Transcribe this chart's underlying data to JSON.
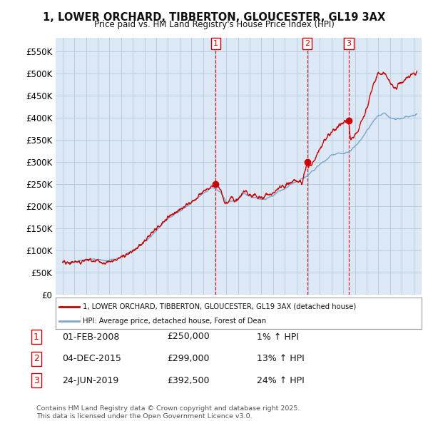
{
  "title": "1, LOWER ORCHARD, TIBBERTON, GLOUCESTER, GL19 3AX",
  "subtitle": "Price paid vs. HM Land Registry's House Price Index (HPI)",
  "ylabel_ticks": [
    "£0",
    "£50K",
    "£100K",
    "£150K",
    "£200K",
    "£250K",
    "£300K",
    "£350K",
    "£400K",
    "£450K",
    "£500K",
    "£550K"
  ],
  "ytick_vals": [
    0,
    50000,
    100000,
    150000,
    200000,
    250000,
    300000,
    350000,
    400000,
    450000,
    500000,
    550000
  ],
  "ylim": [
    0,
    580000
  ],
  "sale_dates": [
    2008.083,
    2015.917,
    2019.472
  ],
  "sale_prices": [
    250000,
    299000,
    392500
  ],
  "sale_labels": [
    "1",
    "2",
    "3"
  ],
  "legend_line1": "1, LOWER ORCHARD, TIBBERTON, GLOUCESTER, GL19 3AX (detached house)",
  "legend_line2": "HPI: Average price, detached house, Forest of Dean",
  "table_rows": [
    [
      "1",
      "01-FEB-2008",
      "£250,000",
      "1% ↑ HPI"
    ],
    [
      "2",
      "04-DEC-2015",
      "£299,000",
      "13% ↑ HPI"
    ],
    [
      "3",
      "24-JUN-2019",
      "£392,500",
      "24% ↑ HPI"
    ]
  ],
  "footnote": "Contains HM Land Registry data © Crown copyright and database right 2025.\nThis data is licensed under the Open Government Licence v3.0.",
  "line_color_red": "#cc0000",
  "line_color_blue": "#7ba7cc",
  "vline_color": "#cc0000",
  "bg_chart": "#dce8f5",
  "background_color": "#ffffff",
  "grid_color": "#b8cfe0"
}
